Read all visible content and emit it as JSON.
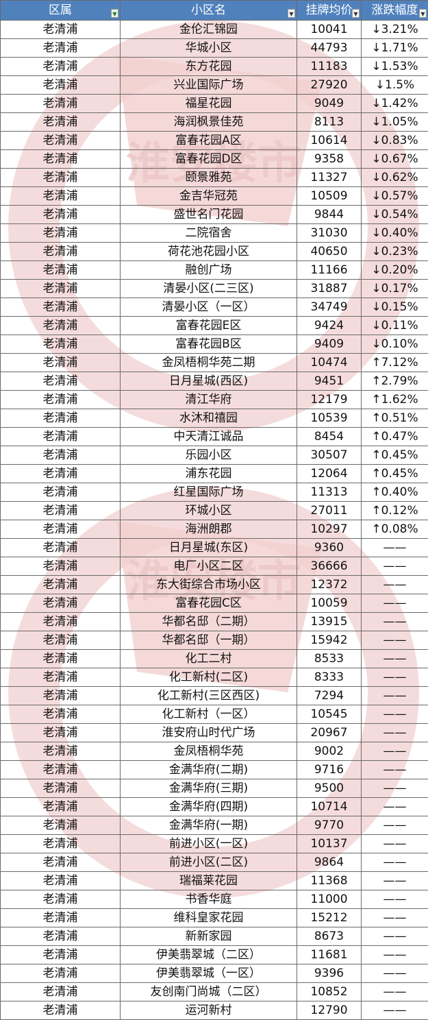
{
  "header": {
    "district": "区属",
    "community": "小区名",
    "price": "挂牌均价",
    "change": "涨跌幅度"
  },
  "watermark_text": "淮安楼市",
  "colors": {
    "header_bg": "#4f81bd",
    "down": "#1a9a3a",
    "up": "#e0201c",
    "watermark": "#f2d0d0"
  },
  "rows": [
    {
      "district": "老清浦",
      "name": "金伦汇锦园",
      "price": "10041",
      "change": "↓3.21%",
      "dir": "down"
    },
    {
      "district": "老清浦",
      "name": "华城小区",
      "price": "44793",
      "change": "↓1.71%",
      "dir": "down"
    },
    {
      "district": "老清浦",
      "name": "东方花园",
      "price": "11183",
      "change": "↓1.53%",
      "dir": "down"
    },
    {
      "district": "老清浦",
      "name": "兴业国际广场",
      "price": "27920",
      "change": "↓1.5%",
      "dir": "down"
    },
    {
      "district": "老清浦",
      "name": "福星花园",
      "price": "9049",
      "change": "↓1.42%",
      "dir": "down"
    },
    {
      "district": "老清浦",
      "name": "海润枫景佳苑",
      "price": "8113",
      "change": "↓1.05%",
      "dir": "down"
    },
    {
      "district": "老清浦",
      "name": "富春花园A区",
      "price": "10614",
      "change": "↓0.83%",
      "dir": "down"
    },
    {
      "district": "老清浦",
      "name": "富春花园D区",
      "price": "9358",
      "change": "↓0.67%",
      "dir": "down"
    },
    {
      "district": "老清浦",
      "name": "颐景雅苑",
      "price": "11327",
      "change": "↓0.62%",
      "dir": "down"
    },
    {
      "district": "老清浦",
      "name": "金吉华冠苑",
      "price": "10509",
      "change": "↓0.57%",
      "dir": "down"
    },
    {
      "district": "老清浦",
      "name": "盛世名门花园",
      "price": "9844",
      "change": "↓0.54%",
      "dir": "down"
    },
    {
      "district": "老清浦",
      "name": "二院宿舍",
      "price": "31030",
      "change": "↓0.40%",
      "dir": "down"
    },
    {
      "district": "老清浦",
      "name": "荷花池花园小区",
      "price": "40650",
      "change": "↓0.23%",
      "dir": "down"
    },
    {
      "district": "老清浦",
      "name": "融创广场",
      "price": "11166",
      "change": "↓0.20%",
      "dir": "down"
    },
    {
      "district": "老清浦",
      "name": "清晏小区(二三区)",
      "price": "31887",
      "change": "↓0.17%",
      "dir": "down"
    },
    {
      "district": "老清浦",
      "name": "清晏小区（一区）",
      "price": "34749",
      "change": "↓0.15%",
      "dir": "down"
    },
    {
      "district": "老清浦",
      "name": "富春花园E区",
      "price": "9424",
      "change": "↓0.11%",
      "dir": "down"
    },
    {
      "district": "老清浦",
      "name": "富春花园B区",
      "price": "9409",
      "change": "↓0.10%",
      "dir": "down"
    },
    {
      "district": "老清浦",
      "name": "金凤梧桐华苑二期",
      "price": "10474",
      "change": "↑7.12%",
      "dir": "up"
    },
    {
      "district": "老清浦",
      "name": "日月星城(西区)",
      "price": "9451",
      "change": "↑2.79%",
      "dir": "up"
    },
    {
      "district": "老清浦",
      "name": "清江华府",
      "price": "12179",
      "change": "↑1.62%",
      "dir": "up"
    },
    {
      "district": "老清浦",
      "name": "水沐和禧园",
      "price": "10539",
      "change": "↑0.51%",
      "dir": "up"
    },
    {
      "district": "老清浦",
      "name": "中天清江诚品",
      "price": "8454",
      "change": "↑0.47%",
      "dir": "up"
    },
    {
      "district": "老清浦",
      "name": "乐园小区",
      "price": "30507",
      "change": "↑0.45%",
      "dir": "up"
    },
    {
      "district": "老清浦",
      "name": "浦东花园",
      "price": "12064",
      "change": "↑0.45%",
      "dir": "up"
    },
    {
      "district": "老清浦",
      "name": "红星国际广场",
      "price": "11313",
      "change": "↑0.40%",
      "dir": "up"
    },
    {
      "district": "老清浦",
      "name": "环城小区",
      "price": "27011",
      "change": "↑0.12%",
      "dir": "up"
    },
    {
      "district": "老清浦",
      "name": "海洲朗郡",
      "price": "10297",
      "change": "↑0.08%",
      "dir": "up"
    },
    {
      "district": "老清浦",
      "name": "日月星城(东区)",
      "price": "9360",
      "change": "——",
      "dir": "flat"
    },
    {
      "district": "老清浦",
      "name": "电厂小区二区",
      "price": "36666",
      "change": "——",
      "dir": "flat"
    },
    {
      "district": "老清浦",
      "name": "东大街综合市场小区",
      "price": "12372",
      "change": "——",
      "dir": "flat"
    },
    {
      "district": "老清浦",
      "name": "富春花园C区",
      "price": "10059",
      "change": "——",
      "dir": "flat"
    },
    {
      "district": "老清浦",
      "name": "华都名邸（二期）",
      "price": "13915",
      "change": "——",
      "dir": "flat"
    },
    {
      "district": "老清浦",
      "name": "华都名邸（一期）",
      "price": "15942",
      "change": "——",
      "dir": "flat"
    },
    {
      "district": "老清浦",
      "name": "化工二村",
      "price": "8533",
      "change": "——",
      "dir": "flat"
    },
    {
      "district": "老清浦",
      "name": "化工新村(二区)",
      "price": "8333",
      "change": "——",
      "dir": "flat"
    },
    {
      "district": "老清浦",
      "name": "化工新村(三区西区)",
      "price": "7294",
      "change": "——",
      "dir": "flat"
    },
    {
      "district": "老清浦",
      "name": "化工新村（一区）",
      "price": "10545",
      "change": "——",
      "dir": "flat"
    },
    {
      "district": "老清浦",
      "name": "淮安府山时代广场",
      "price": "20967",
      "change": "——",
      "dir": "flat"
    },
    {
      "district": "老清浦",
      "name": "金凤梧桐华苑",
      "price": "9002",
      "change": "——",
      "dir": "flat"
    },
    {
      "district": "老清浦",
      "name": "金满华府(二期)",
      "price": "9716",
      "change": "——",
      "dir": "flat"
    },
    {
      "district": "老清浦",
      "name": "金满华府(三期)",
      "price": "9500",
      "change": "——",
      "dir": "flat"
    },
    {
      "district": "老清浦",
      "name": "金满华府(四期)",
      "price": "10714",
      "change": "——",
      "dir": "flat"
    },
    {
      "district": "老清浦",
      "name": "金满华府(一期)",
      "price": "9770",
      "change": "——",
      "dir": "flat"
    },
    {
      "district": "老清浦",
      "name": "前进小区(一区)",
      "price": "10137",
      "change": "——",
      "dir": "flat"
    },
    {
      "district": "老清浦",
      "name": "前进小区(二区)",
      "price": "9864",
      "change": "——",
      "dir": "flat"
    },
    {
      "district": "老清浦",
      "name": "瑞福莱花园",
      "price": "11368",
      "change": "——",
      "dir": "flat"
    },
    {
      "district": "老清浦",
      "name": "书香华庭",
      "price": "11000",
      "change": "——",
      "dir": "flat"
    },
    {
      "district": "老清浦",
      "name": "维科皇家花园",
      "price": "15212",
      "change": "——",
      "dir": "flat"
    },
    {
      "district": "老清浦",
      "name": "新新家园",
      "price": "8673",
      "change": "——",
      "dir": "flat"
    },
    {
      "district": "老清浦",
      "name": "伊美翡翠城（二区）",
      "price": "11681",
      "change": "——",
      "dir": "flat"
    },
    {
      "district": "老清浦",
      "name": "伊美翡翠城（一区）",
      "price": "9396",
      "change": "——",
      "dir": "flat"
    },
    {
      "district": "老清浦",
      "name": "友创南门尚城（二区）",
      "price": "10852",
      "change": "——",
      "dir": "flat"
    },
    {
      "district": "老清浦",
      "name": "运河新村",
      "price": "12790",
      "change": "——",
      "dir": "flat"
    }
  ]
}
